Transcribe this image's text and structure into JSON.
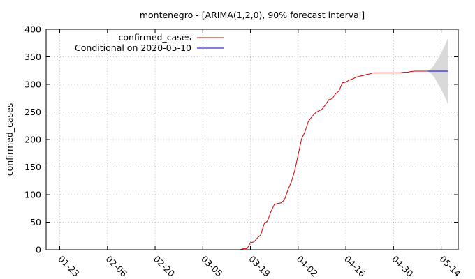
{
  "chart_data": {
    "type": "line",
    "title": "montenegro -  [ARIMA(1,2,0), 90% forecast interval]",
    "xlabel": "",
    "ylabel": "confirmed_cases",
    "xlim": [
      "2020-01-19",
      "2020-05-19"
    ],
    "ylim": [
      0,
      400
    ],
    "yticks": [
      0,
      50,
      100,
      150,
      200,
      250,
      300,
      350,
      400
    ],
    "xticks": [
      {
        "date": "2020-01-23",
        "label": "01-23"
      },
      {
        "date": "2020-02-06",
        "label": "02-06"
      },
      {
        "date": "2020-02-20",
        "label": "02-20"
      },
      {
        "date": "2020-03-05",
        "label": "03-05"
      },
      {
        "date": "2020-03-19",
        "label": "03-19"
      },
      {
        "date": "2020-04-02",
        "label": "04-02"
      },
      {
        "date": "2020-04-16",
        "label": "04-16"
      },
      {
        "date": "2020-04-30",
        "label": "04-30"
      },
      {
        "date": "2020-05-14",
        "label": "05-14"
      }
    ],
    "grid": true,
    "legend_position": "top-left",
    "series": [
      {
        "name": "confirmed_cases",
        "color": "#cc0000",
        "points": [
          [
            "2020-03-14",
            0
          ],
          [
            "2020-03-15",
            0
          ],
          [
            "2020-03-16",
            0
          ],
          [
            "2020-03-17",
            2
          ],
          [
            "2020-03-18",
            2
          ],
          [
            "2020-03-19",
            13
          ],
          [
            "2020-03-20",
            14
          ],
          [
            "2020-03-21",
            21
          ],
          [
            "2020-03-22",
            27
          ],
          [
            "2020-03-23",
            47
          ],
          [
            "2020-03-24",
            52
          ],
          [
            "2020-03-25",
            69
          ],
          [
            "2020-03-26",
            82
          ],
          [
            "2020-03-27",
            84
          ],
          [
            "2020-03-28",
            85
          ],
          [
            "2020-03-29",
            91
          ],
          [
            "2020-03-30",
            109
          ],
          [
            "2020-03-31",
            123
          ],
          [
            "2020-04-01",
            144
          ],
          [
            "2020-04-02",
            172
          ],
          [
            "2020-04-03",
            201
          ],
          [
            "2020-04-04",
            214
          ],
          [
            "2020-04-05",
            233
          ],
          [
            "2020-04-06",
            241
          ],
          [
            "2020-04-07",
            248
          ],
          [
            "2020-04-08",
            252
          ],
          [
            "2020-04-09",
            255
          ],
          [
            "2020-04-10",
            263
          ],
          [
            "2020-04-11",
            272
          ],
          [
            "2020-04-12",
            274
          ],
          [
            "2020-04-13",
            283
          ],
          [
            "2020-04-14",
            288
          ],
          [
            "2020-04-15",
            303
          ],
          [
            "2020-04-16",
            304
          ],
          [
            "2020-04-17",
            308
          ],
          [
            "2020-04-18",
            310
          ],
          [
            "2020-04-19",
            313
          ],
          [
            "2020-04-20",
            315
          ],
          [
            "2020-04-21",
            316
          ],
          [
            "2020-04-22",
            318
          ],
          [
            "2020-04-23",
            319
          ],
          [
            "2020-04-24",
            321
          ],
          [
            "2020-04-25",
            321
          ],
          [
            "2020-04-26",
            321
          ],
          [
            "2020-04-27",
            321
          ],
          [
            "2020-04-28",
            321
          ],
          [
            "2020-04-29",
            321
          ],
          [
            "2020-04-30",
            321
          ],
          [
            "2020-05-01",
            321
          ],
          [
            "2020-05-02",
            321
          ],
          [
            "2020-05-03",
            322
          ],
          [
            "2020-05-04",
            322
          ],
          [
            "2020-05-05",
            323
          ],
          [
            "2020-05-06",
            324
          ],
          [
            "2020-05-07",
            324
          ],
          [
            "2020-05-08",
            324
          ],
          [
            "2020-05-09",
            324
          ],
          [
            "2020-05-10",
            324
          ]
        ]
      },
      {
        "name": "Conditional on 2020-05-10",
        "color": "#0000cc",
        "points": [
          [
            "2020-05-10",
            324
          ],
          [
            "2020-05-11",
            324
          ],
          [
            "2020-05-12",
            324
          ],
          [
            "2020-05-13",
            324
          ],
          [
            "2020-05-14",
            324
          ],
          [
            "2020-05-15",
            324
          ],
          [
            "2020-05-16",
            324
          ]
        ]
      }
    ],
    "forecast_interval": {
      "color": "#d9d9d9",
      "points": [
        [
          "2020-05-10",
          324,
          324
        ],
        [
          "2020-05-11",
          320,
          328
        ],
        [
          "2020-05-12",
          313,
          336
        ],
        [
          "2020-05-13",
          302,
          346
        ],
        [
          "2020-05-14",
          291,
          357
        ],
        [
          "2020-05-15",
          278,
          370
        ],
        [
          "2020-05-16",
          264,
          384
        ]
      ]
    }
  }
}
